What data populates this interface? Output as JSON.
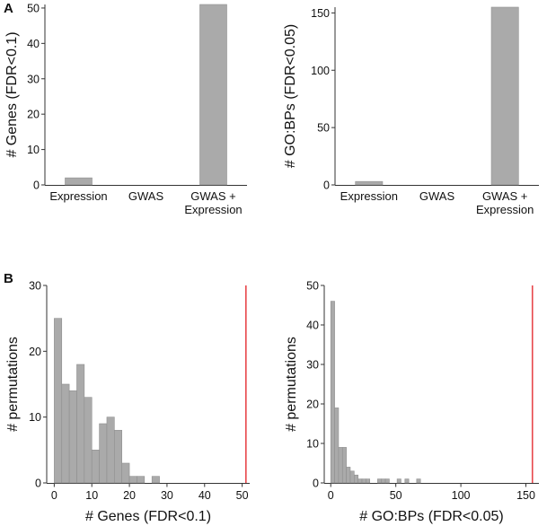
{
  "panel_labels": [
    "A",
    "B"
  ],
  "colors": {
    "bar": "#aaaaaa",
    "bar_stroke": "#8f8f8f",
    "observed_line": "#e8474c"
  },
  "chart_data": [
    {
      "id": "A1",
      "type": "bar",
      "ylabel": "# Genes (FDR<0.1)",
      "ylim": [
        0,
        51
      ],
      "yticks": [
        0,
        10,
        20,
        30,
        40,
        50
      ],
      "categories": [
        {
          "label": [
            "Expression"
          ],
          "value": 2
        },
        {
          "label": [
            "GWAS"
          ],
          "value": 0
        },
        {
          "label": [
            "GWAS +",
            "Expression"
          ],
          "value": 51
        }
      ]
    },
    {
      "id": "A2",
      "type": "bar",
      "ylabel": "# GO:BPs (FDR<0.05)",
      "ylim": [
        0,
        155
      ],
      "yticks": [
        0,
        50,
        100,
        150
      ],
      "categories": [
        {
          "label": [
            "Expression"
          ],
          "value": 3
        },
        {
          "label": [
            "GWAS"
          ],
          "value": 0
        },
        {
          "label": [
            "GWAS +",
            "Expression"
          ],
          "value": 155
        }
      ]
    },
    {
      "id": "B1",
      "type": "histogram",
      "xlabel": "# Genes (FDR<0.1)",
      "ylabel": "# permutations",
      "xlim": [
        -2,
        52
      ],
      "ylim": [
        0,
        30
      ],
      "xticks": [
        0,
        10,
        20,
        30,
        40,
        50
      ],
      "yticks": [
        0,
        10,
        20,
        30
      ],
      "bin_start": 0,
      "bin_width": 2,
      "counts": [
        25,
        15,
        14,
        18,
        13,
        5,
        9,
        10,
        8,
        3,
        1,
        1,
        0,
        1
      ],
      "observed": 51
    },
    {
      "id": "B2",
      "type": "histogram",
      "xlabel": "# GO:BPs (FDR<0.05)",
      "ylabel": "# permutations",
      "xlim": [
        -5,
        160
      ],
      "ylim": [
        0,
        50
      ],
      "xticks": [
        0,
        50,
        100,
        150
      ],
      "yticks": [
        0,
        10,
        20,
        30,
        40,
        50
      ],
      "bin_start": 0,
      "bin_width": 3,
      "counts": [
        46,
        19,
        9,
        9,
        4,
        3,
        2,
        1,
        1,
        1,
        0,
        0,
        1,
        1,
        1,
        0,
        0,
        1,
        0,
        1,
        0,
        0,
        1
      ],
      "observed": 155
    }
  ]
}
